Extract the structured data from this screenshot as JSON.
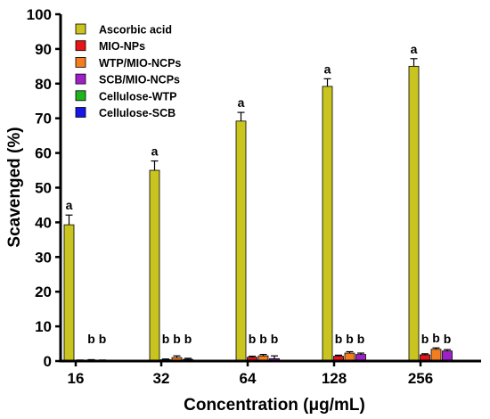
{
  "chart_data": {
    "type": "bar",
    "xlabel": "Concentration (μg/mL)",
    "ylabel": "Scavenged (%)",
    "ylim": [
      0,
      100
    ],
    "yticks": [
      0,
      10,
      20,
      30,
      40,
      50,
      60,
      70,
      80,
      90,
      100
    ],
    "categories": [
      "16",
      "32",
      "64",
      "128",
      "256"
    ],
    "legend_position": "top-left",
    "series": [
      {
        "name": "Ascorbic acid",
        "color": "#c9c41f",
        "values": [
          39.3,
          55.0,
          69.2,
          79.2,
          85.0
        ],
        "errors": [
          2.8,
          2.7,
          2.5,
          2.2,
          2.2
        ],
        "labels": [
          "a",
          "a",
          "a",
          "a",
          "a"
        ]
      },
      {
        "name": "MIO-NPs",
        "color": "#e8141a",
        "values": [
          0.2,
          0.4,
          1.1,
          1.4,
          1.8
        ],
        "errors": [
          0.1,
          0.2,
          0.3,
          0.3,
          0.3
        ],
        "labels": [
          "",
          "b",
          "b",
          "b",
          "b"
        ]
      },
      {
        "name": "WTP/MIO-NCPs",
        "color": "#f47d1f",
        "values": [
          0.3,
          1.0,
          1.5,
          2.3,
          3.4
        ],
        "errors": [
          0.1,
          0.5,
          0.4,
          0.4,
          0.4
        ],
        "labels": [
          "b",
          "b",
          "b",
          "b",
          "b"
        ]
      },
      {
        "name": "SCB/MIO-NCPs",
        "color": "#a020c8",
        "values": [
          0.2,
          0.5,
          0.7,
          1.9,
          2.9
        ],
        "errors": [
          0.1,
          0.3,
          0.8,
          0.4,
          0.4
        ],
        "labels": [
          "b",
          "b",
          "b",
          "b",
          "b"
        ]
      },
      {
        "name": "Cellulose-WTP",
        "color": "#1fb41f",
        "values": [
          0,
          0,
          0,
          0,
          0
        ],
        "errors": [
          0,
          0,
          0,
          0,
          0
        ],
        "labels": [
          "",
          "",
          "",
          "",
          ""
        ]
      },
      {
        "name": "Cellulose-SCB",
        "color": "#1717e6",
        "values": [
          0,
          0,
          0,
          0,
          0
        ],
        "errors": [
          0,
          0,
          0,
          0,
          0
        ],
        "labels": [
          "",
          "",
          "",
          "",
          ""
        ]
      }
    ]
  }
}
